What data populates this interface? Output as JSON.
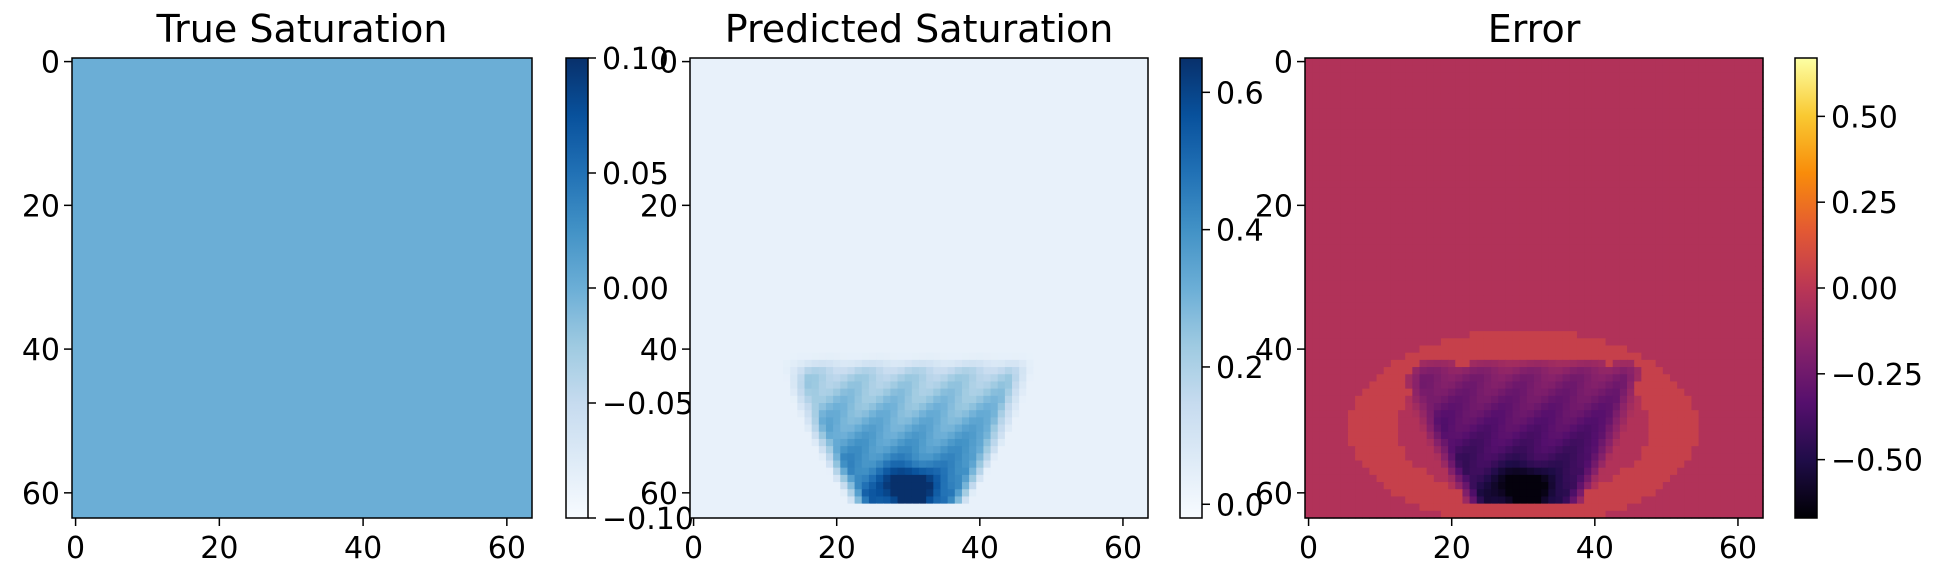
{
  "chart_data": [
    {
      "type": "heatmap",
      "title": "True Saturation",
      "grid_size": [
        64,
        64
      ],
      "colormap": "Blues",
      "field": "uniform",
      "uniform_value": 0.0,
      "xlim": [
        0,
        63
      ],
      "ylim": [
        63,
        0
      ],
      "xticks": [
        "0",
        "20",
        "40",
        "60"
      ],
      "yticks": [
        "0",
        "20",
        "40",
        "60"
      ],
      "xlabel": "",
      "ylabel": "",
      "colorbar": {
        "range": [
          -0.1,
          0.1
        ],
        "ticks": [
          "−0.10",
          "−0.05",
          "0.00",
          "0.05",
          "0.10"
        ],
        "tick_values": [
          -0.1,
          -0.05,
          0,
          0.05,
          0.1
        ]
      }
    },
    {
      "type": "heatmap",
      "title": "Predicted Saturation",
      "grid_size": [
        64,
        64
      ],
      "colormap": "Blues",
      "field": "plume",
      "plume": {
        "center_col": 30,
        "top_row": 42,
        "bottom_row": 61,
        "peak_row": 59,
        "peak_value": 0.65,
        "base_value": 0.03
      },
      "xlim": [
        0,
        63
      ],
      "ylim": [
        63,
        0
      ],
      "xticks": [
        "0",
        "20",
        "40",
        "60"
      ],
      "yticks": [
        "0",
        "20",
        "40",
        "60"
      ],
      "xlabel": "",
      "ylabel": "",
      "colorbar": {
        "range": [
          -0.02,
          0.65
        ],
        "ticks": [
          "0.0",
          "0.2",
          "0.4",
          "0.6"
        ],
        "tick_values": [
          0,
          0.2,
          0.4,
          0.6
        ]
      }
    },
    {
      "type": "heatmap",
      "title": "Error",
      "grid_size": [
        64,
        64
      ],
      "colormap": "inferno",
      "field": "error",
      "plume": {
        "center_col": 30,
        "top_row": 42,
        "bottom_row": 61,
        "peak_row": 59,
        "peak_value": -0.65,
        "base_value": -0.03
      },
      "xlim": [
        0,
        63
      ],
      "ylim": [
        63,
        0
      ],
      "xticks": [
        "0",
        "20",
        "40",
        "60"
      ],
      "yticks": [
        "0",
        "20",
        "40",
        "60"
      ],
      "xlabel": "",
      "ylabel": "",
      "colorbar": {
        "range": [
          -0.67,
          0.67
        ],
        "ticks": [
          "−0.50",
          "−0.25",
          "0.00",
          "0.25",
          "0.50"
        ],
        "tick_values": [
          -0.5,
          -0.25,
          0,
          0.25,
          0.5
        ]
      }
    }
  ]
}
